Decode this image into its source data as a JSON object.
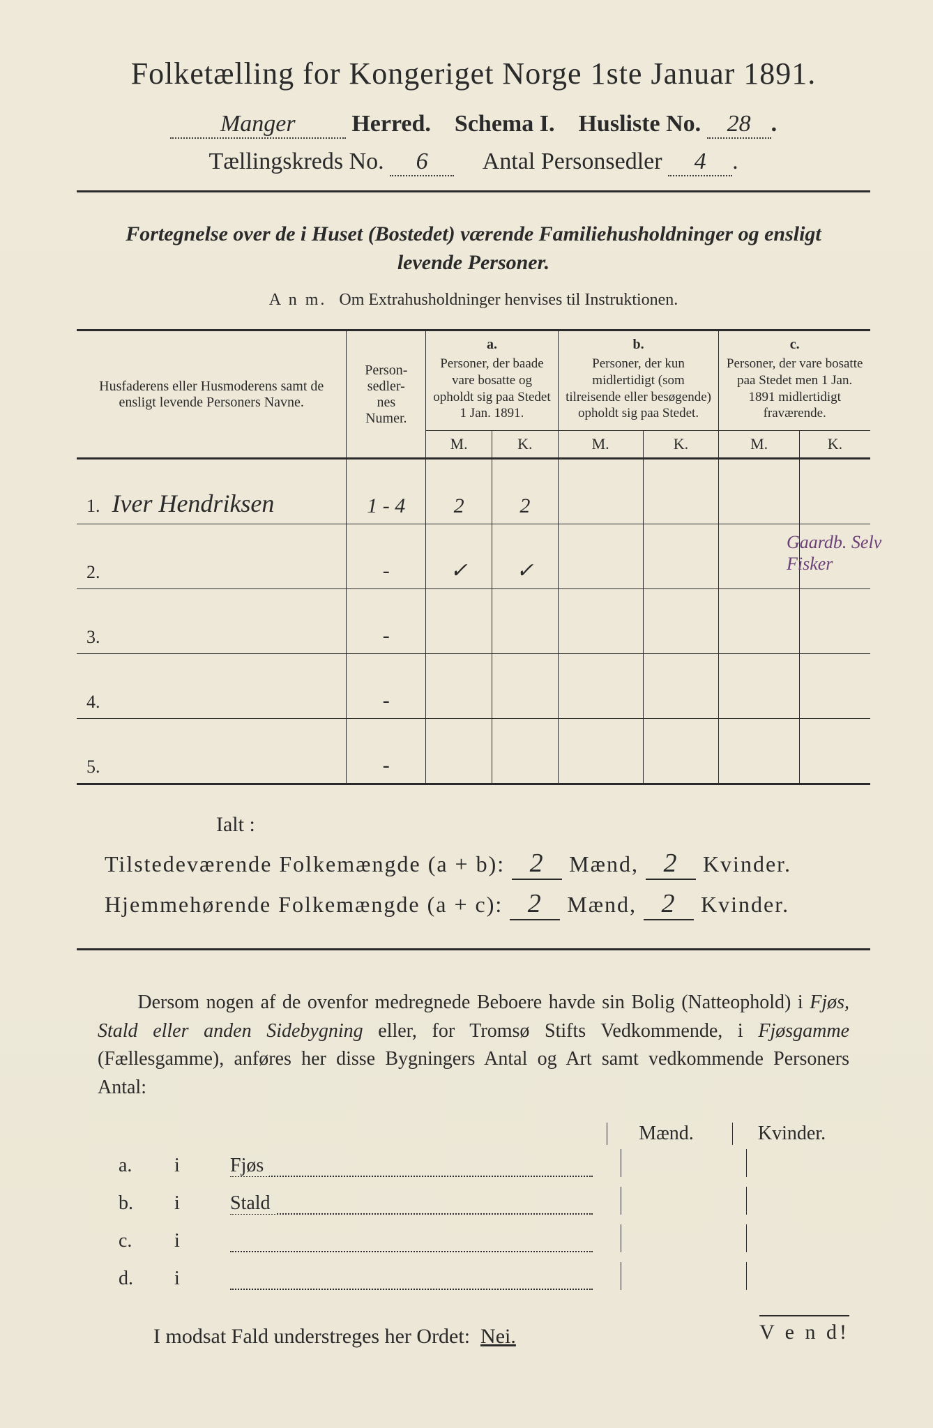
{
  "header": {
    "title": "Folketælling for Kongeriget Norge 1ste Januar 1891.",
    "herred_hand": "Manger",
    "herred_label": "Herred.",
    "schema_label": "Schema I.",
    "husliste_label": "Husliste No.",
    "husliste_no": "28",
    "kreds_label": "Tællingskreds No.",
    "kreds_no": "6",
    "antal_label": "Antal Personsedler",
    "antal_no": "4"
  },
  "subtitle": "Fortegnelse over de i Huset (Bostedet) værende Familiehusholdninger og ensligt levende Personer.",
  "anm_label": "A n m.",
  "anm_text": "Om Extrahusholdninger henvises til Instruktionen.",
  "table": {
    "col_names_header": "Husfaderens eller Husmoderens samt de ensligt levende Personers Navne.",
    "col_numer_header": "Person-\nsedler-\nnes\nNumer.",
    "group_a_label": "a.",
    "group_a_text": "Personer, der baade vare bosatte og opholdt sig paa Stedet 1 Jan. 1891.",
    "group_b_label": "b.",
    "group_b_text": "Personer, der kun midlertidigt (som tilreisende eller besøgende) opholdt sig paa Stedet.",
    "group_c_label": "c.",
    "group_c_text": "Personer, der vare bosatte paa Stedet men 1 Jan. 1891 midlertidigt fraværende.",
    "m_label": "M.",
    "k_label": "K.",
    "rows": [
      {
        "n": "1.",
        "name": "Iver Hendriksen",
        "numer": "1 - 4",
        "a_m": "2",
        "a_k": "2",
        "b_m": "",
        "b_k": "",
        "c_m": "",
        "c_k": "",
        "note": "Gaardb. Selv\nFisker"
      },
      {
        "n": "2.",
        "name": "",
        "numer": "-",
        "a_m": "✓",
        "a_k": "✓",
        "b_m": "",
        "b_k": "",
        "c_m": "",
        "c_k": ""
      },
      {
        "n": "3.",
        "name": "",
        "numer": "-",
        "a_m": "",
        "a_k": "",
        "b_m": "",
        "b_k": "",
        "c_m": "",
        "c_k": ""
      },
      {
        "n": "4.",
        "name": "",
        "numer": "-",
        "a_m": "",
        "a_k": "",
        "b_m": "",
        "b_k": "",
        "c_m": "",
        "c_k": ""
      },
      {
        "n": "5.",
        "name": "",
        "numer": "-",
        "a_m": "",
        "a_k": "",
        "b_m": "",
        "b_k": "",
        "c_m": "",
        "c_k": ""
      }
    ]
  },
  "ialt_label": "Ialt :",
  "sum1_prefix": "Tilstedeværende Folkemængde (a + b):",
  "sum1_m": "2",
  "sum1_between": "Mænd,",
  "sum1_k": "2",
  "sum1_suffix": "Kvinder.",
  "sum2_prefix": "Hjemmehørende Folkemængde (a + c):",
  "sum2_m": "2",
  "sum2_k": "2",
  "para_text_1": "Dersom nogen af de ovenfor medregnede Beboere havde sin Bolig (Natteophold) i ",
  "para_i1": "Fjøs, Stald eller anden Sidebygning",
  "para_text_2": " eller, for Tromsø Stifts Vedkommende, i ",
  "para_i2": "Fjøsgamme",
  "para_text_3": " (Fællesgamme), anføres her disse Bygningers Antal og Art samt vedkommende Personers Antal:",
  "lower_header_m": "Mænd.",
  "lower_header_k": "Kvinder.",
  "lower_rows": [
    {
      "a": "a.",
      "i": "i",
      "label": "Fjøs"
    },
    {
      "a": "b.",
      "i": "i",
      "label": "Stald"
    },
    {
      "a": "c.",
      "i": "i",
      "label": ""
    },
    {
      "a": "d.",
      "i": "i",
      "label": ""
    }
  ],
  "nei_line": "I modsat Fald understreges her Ordet:",
  "nei_word": "Nei.",
  "vend": "V e n d!",
  "colors": {
    "paper": "#ece8d8",
    "ink": "#2a2a2a",
    "purple": "#6b3f78"
  },
  "typography": {
    "title_size_pt": 32,
    "body_size_pt": 21,
    "hand_family": "cursive"
  }
}
